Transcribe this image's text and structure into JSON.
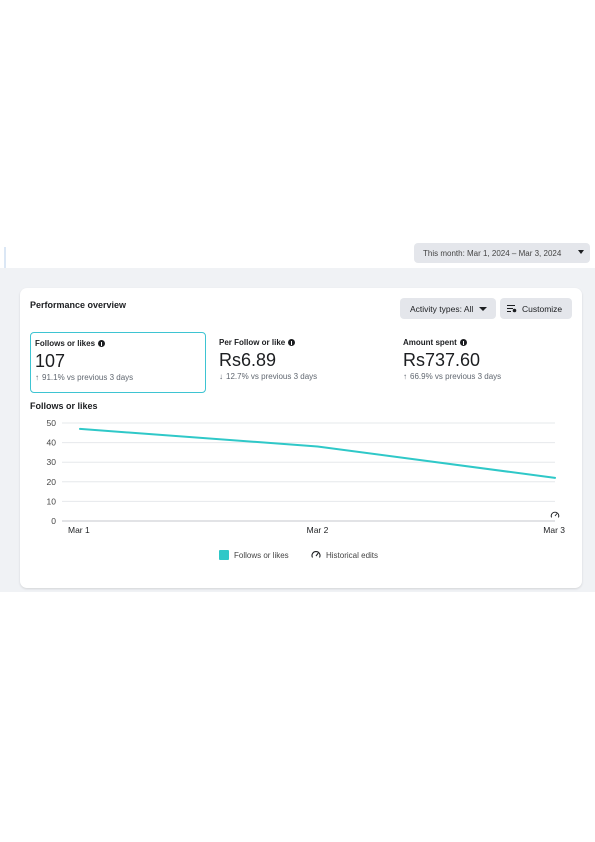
{
  "date_range": {
    "label": "This month: Mar 1, 2024 – Mar 3, 2024"
  },
  "card": {
    "title": "Performance overview",
    "activity_button": "Activity types: All",
    "customize_button": "Customize"
  },
  "metrics": [
    {
      "label": "Follows or likes",
      "value": "107",
      "change": "91.1% vs previous 3 days",
      "direction": "up"
    },
    {
      "label": "Per Follow or like",
      "value": "Rs6.89",
      "change": "12.7% vs previous 3 days",
      "direction": "down"
    },
    {
      "label": "Amount spent",
      "value": "Rs737.60",
      "change": "66.9% vs previous 3 days",
      "direction": "up"
    }
  ],
  "chart_section_title": "Follows or likes",
  "chart_data": {
    "type": "line",
    "x": [
      "Mar 1",
      "Mar 2",
      "Mar 3"
    ],
    "series": [
      {
        "name": "Follows or likes",
        "values": [
          47,
          38,
          22
        ],
        "color": "#2fc8c8"
      }
    ],
    "ylim": [
      0,
      50
    ],
    "yticks": [
      "0",
      "10",
      "20",
      "30",
      "40",
      "50"
    ],
    "grid": true,
    "legend_position": "bottom"
  },
  "legend": {
    "series_label": "Follows or likes",
    "historical_label": "Historical edits"
  },
  "icons": {
    "date_caret": "chevron-down-icon",
    "customize": "sliders-icon",
    "historical": "gauge-icon"
  }
}
